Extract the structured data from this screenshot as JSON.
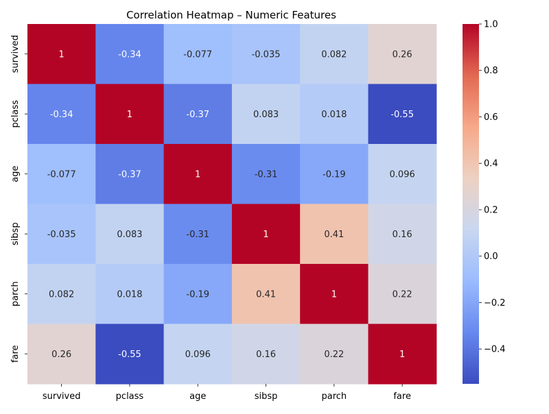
{
  "chart_data": {
    "type": "heatmap",
    "title": "Correlation Heatmap – Numeric Features",
    "rows": [
      "survived",
      "pclass",
      "age",
      "sibsp",
      "parch",
      "fare"
    ],
    "columns": [
      "survived",
      "pclass",
      "age",
      "sibsp",
      "parch",
      "fare"
    ],
    "values": [
      [
        1,
        -0.34,
        -0.077,
        -0.035,
        0.082,
        0.26
      ],
      [
        -0.34,
        1,
        -0.37,
        0.083,
        0.018,
        -0.55
      ],
      [
        -0.077,
        -0.37,
        1,
        -0.31,
        -0.19,
        0.096
      ],
      [
        -0.035,
        0.083,
        -0.31,
        1,
        0.41,
        0.16
      ],
      [
        0.082,
        0.018,
        -0.19,
        0.41,
        1,
        0.22
      ],
      [
        0.26,
        -0.55,
        0.096,
        0.16,
        0.22,
        1
      ]
    ],
    "value_labels": [
      [
        "1",
        "-0.34",
        "-0.077",
        "-0.035",
        "0.082",
        "0.26"
      ],
      [
        "-0.34",
        "1",
        "-0.37",
        "0.083",
        "0.018",
        "-0.55"
      ],
      [
        "-0.077",
        "-0.37",
        "1",
        "-0.31",
        "-0.19",
        "0.096"
      ],
      [
        "-0.035",
        "0.083",
        "-0.31",
        "1",
        "0.41",
        "0.16"
      ],
      [
        "0.082",
        "0.018",
        "-0.19",
        "0.41",
        "1",
        "0.22"
      ],
      [
        "0.26",
        "-0.55",
        "0.096",
        "0.16",
        "0.22",
        "1"
      ]
    ],
    "colorbar": {
      "min": -0.55,
      "max": 1.0,
      "ticks": [
        1.0,
        0.8,
        0.6,
        0.4,
        0.2,
        0.0,
        -0.2,
        -0.4
      ],
      "tick_labels": [
        "1.0",
        "0.8",
        "0.6",
        "0.4",
        "0.2",
        "0.0",
        "−0.2",
        "−0.4"
      ]
    },
    "colormap": "coolwarm",
    "colormap_stops": [
      "#3b4cc0",
      "#6788ee",
      "#9abbff",
      "#c9d7f0",
      "#edd1c2",
      "#f7a889",
      "#e26952",
      "#b40426"
    ],
    "grid": false
  }
}
